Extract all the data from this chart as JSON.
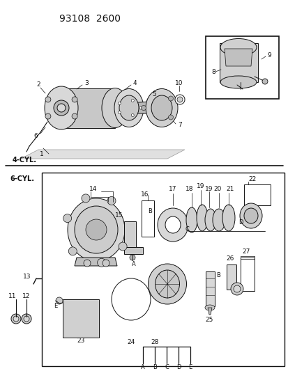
{
  "title": "93108  2600",
  "bg": "#f5f5f5",
  "white": "#ffffff",
  "black": "#111111",
  "gray_light": "#cccccc",
  "gray_mid": "#aaaaaa",
  "label_4cyl": "4-CYL.",
  "label_6cyl": "6-CYL.",
  "fig_w": 4.14,
  "fig_h": 5.33,
  "dpi": 100
}
